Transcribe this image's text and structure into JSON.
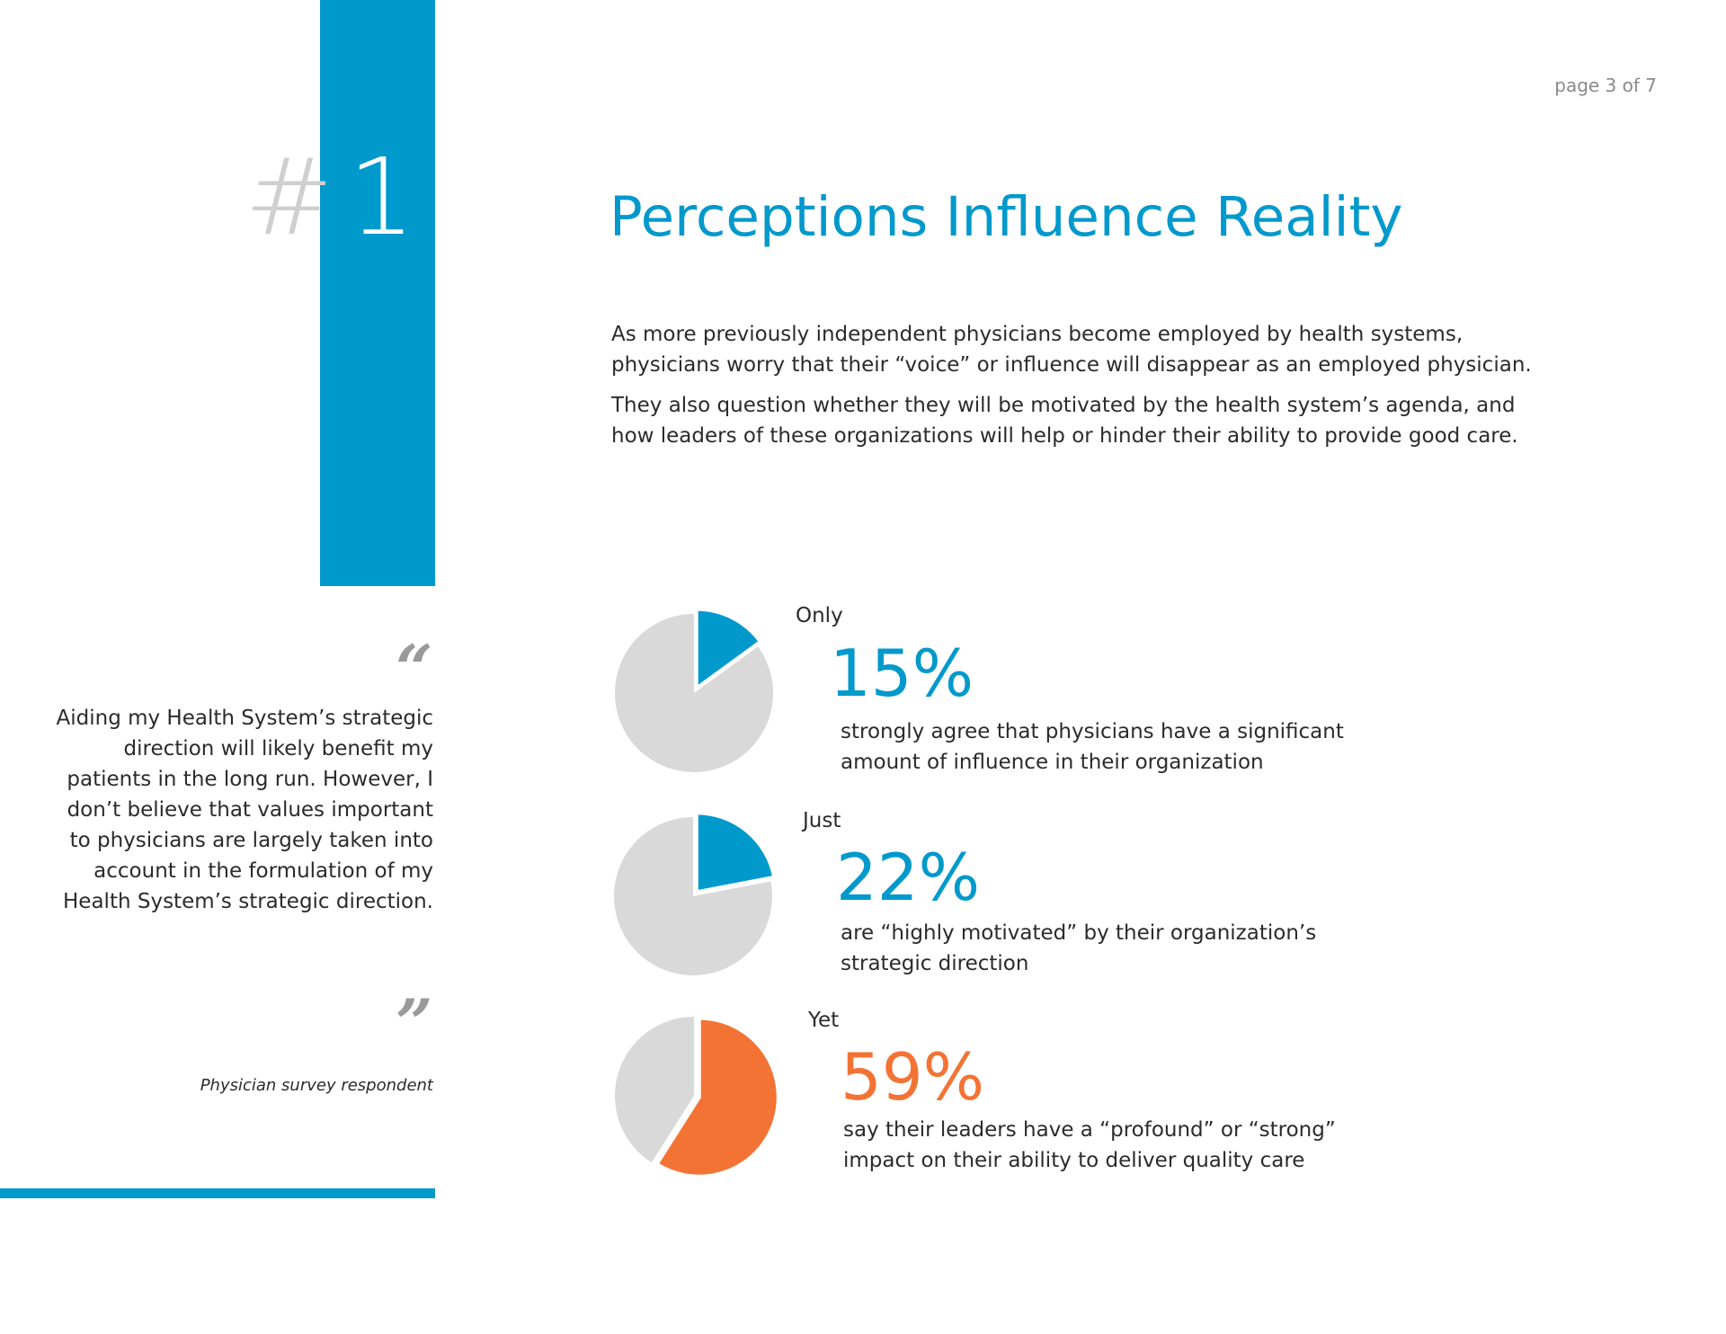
{
  "page_number": "page 3 of 7",
  "section": {
    "hash": "#",
    "number": "1"
  },
  "title": "Perceptions Influence Reality",
  "paragraphs": [
    "As more previously independent physicians become employed by health systems, physicians worry that their “voice” or influence will disappear as an employed physician.",
    "They also question whether they will be motivated by the health system’s agenda, and how leaders of these organizations will help or hinder their ability to provide good care."
  ],
  "quote": {
    "open_mark": "“",
    "close_mark": "”",
    "text": "Aiding my Health System’s strategic direction will likely benefit my patients in the long run. However, I don’t believe that values important to physicians are largely taken into account in the formulation of my Health System’s strategic direction.",
    "attribution": "Physician survey respondent"
  },
  "colors": {
    "accent_blue": "#0099cc",
    "accent_orange": "#f37335",
    "pie_gray": "#d9d9d9"
  },
  "stats": [
    {
      "prefix": "Only",
      "value": "15%",
      "fraction": 0.15,
      "color": "#0099cc",
      "description": "strongly agree that physicians have a significant amount of influence in their organization"
    },
    {
      "prefix": "Just",
      "value": "22%",
      "fraction": 0.22,
      "color": "#0099cc",
      "description": "are “highly motivated” by their organization’s strategic direction"
    },
    {
      "prefix": "Yet",
      "value": "59%",
      "fraction": 0.59,
      "color": "#f37335",
      "description": "say their leaders have a “profound” or “strong” impact on their ability to deliver quality care"
    }
  ]
}
